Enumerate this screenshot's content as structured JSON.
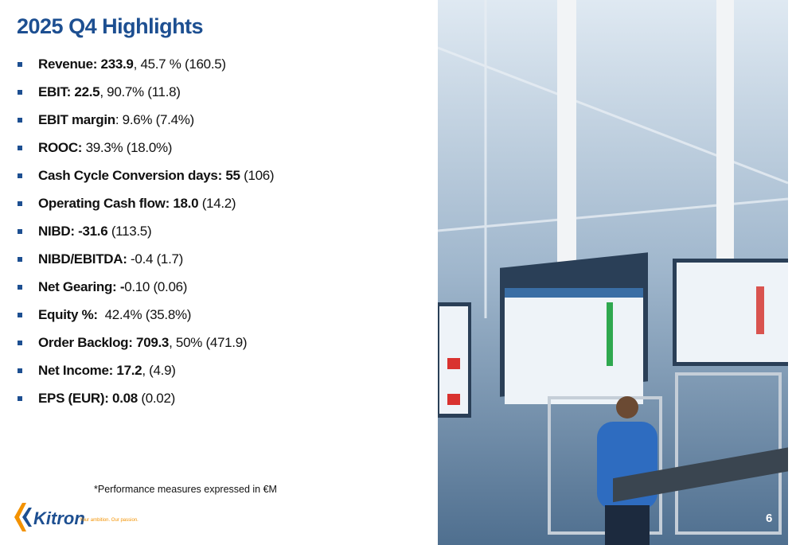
{
  "header": {
    "title": "2025 Q4 Highlights"
  },
  "bullets": [
    {
      "strong": "Revenue: 233.9",
      "text": ", 45.7 % (160.5)"
    },
    {
      "strong": "EBIT: 22.5",
      "text": ", 90.7% (11.8)"
    },
    {
      "strong": "EBIT margin",
      "text": ": 9.6% (7.4%)"
    },
    {
      "strong": "ROOC:",
      "text": " 39.3% (18.0%)"
    },
    {
      "strong": "Cash Cycle Conversion days: 55",
      "text": " (106)"
    },
    {
      "strong": "Operating Cash flow: 18.0",
      "text": " (14.2)"
    },
    {
      "strong": "NIBD: -31.6",
      "text": " (113.5)"
    },
    {
      "strong": "NIBD/EBITDA:",
      "text": " -0.4 (1.7)"
    },
    {
      "strong": "Net Gearing: -",
      "text": "0.10 (0.06)"
    },
    {
      "strong": "Equity %:",
      "text": "  42.4% (35.8%)"
    },
    {
      "strong": "Order Backlog: 709.3",
      "text": ", 50% (471.9)"
    },
    {
      "strong": "Net Income: 17.2",
      "text": ", (4.9)"
    },
    {
      "strong": "EPS (EUR): 0.08",
      "text": " (0.02)"
    }
  ],
  "footnote": "*Performance measures expressed in €M",
  "logo": {
    "name": "Kitron",
    "tagline": "Your ambition. Our passion."
  },
  "page_number": "6"
}
